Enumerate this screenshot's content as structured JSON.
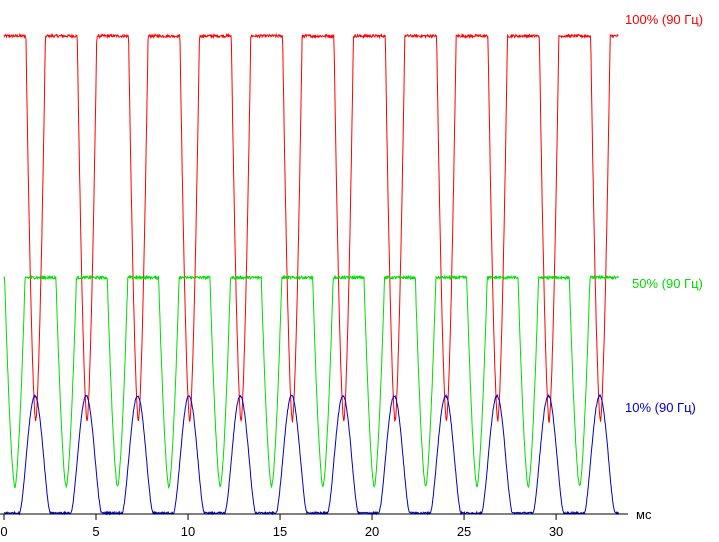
{
  "chart_data": {
    "type": "line",
    "title": "",
    "xlabel": "мс",
    "ylabel": "",
    "xlim": [
      0,
      33.8
    ],
    "ylim": [
      0,
      100
    ],
    "grid": false,
    "legend": "inline-right",
    "x_ticks": [
      0,
      5,
      10,
      15,
      20,
      25,
      30
    ],
    "x_tick_labels": [
      "0",
      "5",
      "10",
      "15",
      "20",
      "25",
      "30"
    ],
    "series": [
      {
        "name": "100% (90 Гц)",
        "color": "#ff0000",
        "high": 93,
        "low": 18,
        "period_ms": 2.79,
        "first_peak_ms": 1.72,
        "duty": 0.62
      },
      {
        "name": "50% (90 Гц)",
        "color": "#00dd00",
        "high": 46,
        "low": 5.3,
        "period_ms": 2.79,
        "first_peak_ms": 3.38,
        "duty": 0.6
      },
      {
        "name": "10% (90 Гц)",
        "color": "#0000cc",
        "high": 23,
        "low": 0.2,
        "period_ms": 2.79,
        "first_peak_ms": 1.68,
        "duty": 0.3
      }
    ]
  }
}
